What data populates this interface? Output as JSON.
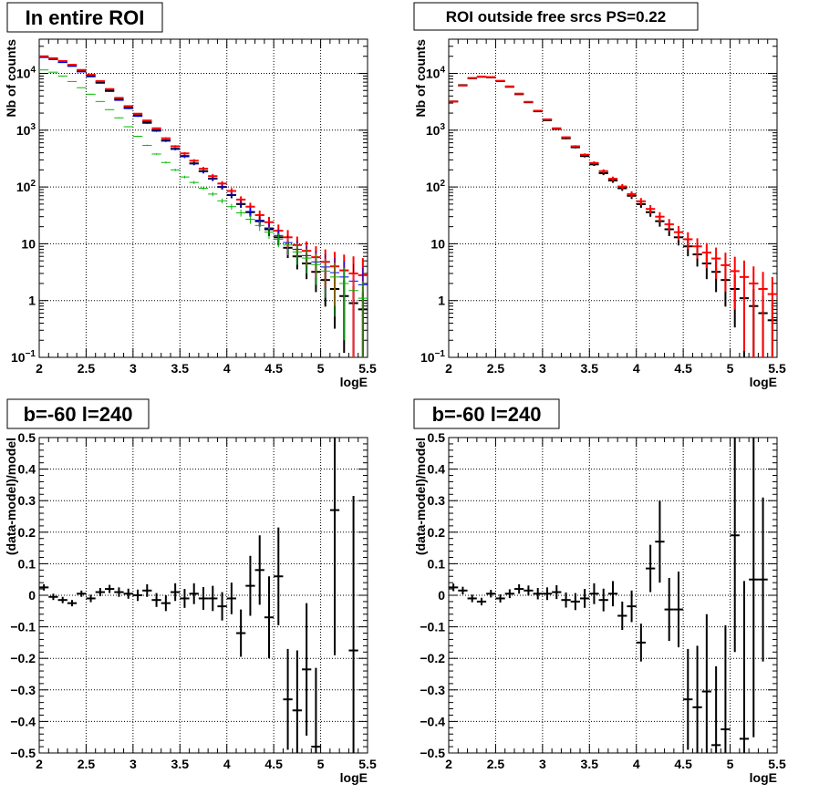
{
  "chart_data": [
    {
      "type": "scatter",
      "title": "In entire ROI",
      "xlabel": "logE",
      "ylabel": "Nb of counts",
      "xlim": [
        2,
        5.5
      ],
      "ylim": [
        0.1,
        40000
      ],
      "yscale": "log",
      "grid": true,
      "x_ticks": [
        "2",
        "2.5",
        "3",
        "3.5",
        "4",
        "4.5",
        "5",
        "5.5"
      ],
      "y_ticks": [
        {
          "value": 0.1,
          "base": "10",
          "exp": "−1"
        },
        {
          "value": 1,
          "label": "1"
        },
        {
          "value": 10,
          "label": "10"
        },
        {
          "value": 100,
          "base": "10",
          "exp": "2"
        },
        {
          "value": 1000,
          "base": "10",
          "exp": "3"
        },
        {
          "value": 10000,
          "base": "10",
          "exp": "4"
        }
      ],
      "x": [
        2.05,
        2.15,
        2.25,
        2.35,
        2.45,
        2.55,
        2.65,
        2.75,
        2.85,
        2.95,
        3.05,
        3.15,
        3.25,
        3.35,
        3.45,
        3.55,
        3.65,
        3.75,
        3.85,
        3.95,
        4.05,
        4.15,
        4.25,
        4.35,
        4.45,
        4.55,
        4.65,
        4.75,
        4.85,
        4.95,
        5.05,
        5.15,
        5.25,
        5.35,
        5.45
      ],
      "series": [
        {
          "color": "#000000",
          "values": [
            19500,
            18000,
            16000,
            13800,
            11000,
            9100,
            7000,
            5000,
            3500,
            2500,
            1820,
            1380,
            1000,
            660,
            470,
            350,
            260,
            190,
            140,
            100,
            72,
            50,
            36,
            25,
            18,
            13,
            8.5,
            6,
            4.5,
            3.2,
            2.3,
            1.6,
            1.2,
            0.9,
            0.7
          ],
          "rel_err": [
            0.008,
            0.008,
            0.008,
            0.009,
            0.01,
            0.011,
            0.012,
            0.014,
            0.017,
            0.02,
            0.023,
            0.027,
            0.032,
            0.039,
            0.046,
            0.053,
            0.062,
            0.073,
            0.085,
            0.1,
            0.12,
            0.14,
            0.17,
            0.2,
            0.24,
            0.28,
            0.34,
            0.41,
            0.47,
            0.56,
            0.66,
            0.8,
            0.9,
            1.0,
            1.0
          ]
        },
        {
          "color": "#ff0000",
          "values": [
            20000,
            18500,
            16500,
            14200,
            11500,
            9500,
            7300,
            5300,
            3700,
            2650,
            1950,
            1480,
            1080,
            720,
            520,
            390,
            290,
            210,
            155,
            115,
            85,
            60,
            45,
            32,
            24,
            17,
            13,
            9.5,
            7.5,
            5.8,
            4.8,
            4.0,
            3.4,
            3.0,
            2.8
          ],
          "rel_err": [
            0.008,
            0.008,
            0.008,
            0.009,
            0.01,
            0.011,
            0.012,
            0.014,
            0.017,
            0.02,
            0.023,
            0.027,
            0.032,
            0.039,
            0.046,
            0.053,
            0.062,
            0.073,
            0.085,
            0.1,
            0.12,
            0.14,
            0.17,
            0.2,
            0.24,
            0.28,
            0.34,
            0.41,
            0.47,
            0.56,
            0.66,
            0.8,
            0.9,
            1.0,
            1.0
          ]
        },
        {
          "color": "#0000ff",
          "values": [
            19000,
            17500,
            15500,
            13300,
            10600,
            8700,
            6700,
            4800,
            3350,
            2400,
            1750,
            1320,
            960,
            640,
            460,
            340,
            255,
            185,
            138,
            100,
            72,
            51,
            37,
            26,
            19,
            14,
            10.5,
            8,
            6.2,
            4.8,
            3.9,
            3.1,
            2.6,
            2.2,
            1.9
          ],
          "rel_err": [
            0.008,
            0.008,
            0.008,
            0.009,
            0.01,
            0.011,
            0.012,
            0.014,
            0.017,
            0.02,
            0.023,
            0.027,
            0.032,
            0.039,
            0.046,
            0.053,
            0.062,
            0.073,
            0.085,
            0.1,
            0.12,
            0.14,
            0.17,
            0.2,
            0.24,
            0.28,
            0.34,
            0.41,
            0.47,
            0.56,
            0.66,
            0.8,
            0.9,
            1.0,
            1.0
          ]
        },
        {
          "color": "#00bb00",
          "values": [
            11500,
            10500,
            9000,
            7200,
            5600,
            4300,
            3200,
            2300,
            1650,
            1150,
            780,
            540,
            380,
            270,
            200,
            150,
            120,
            95,
            75,
            57,
            45,
            35,
            27,
            21,
            16,
            12,
            9.5,
            7.2,
            5.6,
            4.3,
            3.3,
            2.6,
            2.0,
            1.5,
            1.1
          ],
          "rel_err": [
            0.008,
            0.008,
            0.008,
            0.009,
            0.01,
            0.011,
            0.012,
            0.014,
            0.017,
            0.02,
            0.023,
            0.027,
            0.032,
            0.039,
            0.046,
            0.053,
            0.062,
            0.073,
            0.085,
            0.1,
            0.12,
            0.14,
            0.17,
            0.2,
            0.24,
            0.28,
            0.34,
            0.41,
            0.47,
            0.56,
            0.66,
            0.8,
            0.9,
            1.0,
            1.0
          ]
        }
      ]
    },
    {
      "type": "scatter",
      "title": "ROI outside free srcs PS=0.22",
      "xlabel": "logE",
      "ylabel": "Nb of counts",
      "xlim": [
        2,
        5.5
      ],
      "ylim": [
        0.1,
        40000
      ],
      "yscale": "log",
      "grid": true,
      "x_ticks": [
        "2",
        "2.5",
        "3",
        "3.5",
        "4",
        "4.5",
        "5",
        "5.5"
      ],
      "y_ticks": [
        {
          "value": 0.1,
          "base": "10",
          "exp": "−1"
        },
        {
          "value": 1,
          "label": "1"
        },
        {
          "value": 10,
          "label": "10"
        },
        {
          "value": 100,
          "base": "10",
          "exp": "2"
        },
        {
          "value": 1000,
          "base": "10",
          "exp": "3"
        },
        {
          "value": 10000,
          "base": "10",
          "exp": "4"
        }
      ],
      "x": [
        2.05,
        2.15,
        2.25,
        2.35,
        2.45,
        2.55,
        2.65,
        2.75,
        2.85,
        2.95,
        3.05,
        3.15,
        3.25,
        3.35,
        3.45,
        3.55,
        3.65,
        3.75,
        3.85,
        3.95,
        4.05,
        4.15,
        4.25,
        4.35,
        4.45,
        4.55,
        4.65,
        4.75,
        4.85,
        4.95,
        5.05,
        5.15,
        5.25,
        5.35,
        5.45
      ],
      "series": [
        {
          "color": "#000000",
          "values": [
            3200,
            6200,
            8200,
            8700,
            8500,
            7300,
            5800,
            4300,
            3100,
            2150,
            1500,
            1050,
            720,
            500,
            350,
            250,
            175,
            130,
            95,
            70,
            50,
            36,
            25,
            18,
            13,
            9,
            6.5,
            4.5,
            3.2,
            2.3,
            1.6,
            1.1,
            0.8,
            0.6,
            0.45
          ],
          "rel_err": [
            0.02,
            0.013,
            0.011,
            0.011,
            0.011,
            0.012,
            0.013,
            0.015,
            0.018,
            0.022,
            0.026,
            0.031,
            0.037,
            0.045,
            0.053,
            0.063,
            0.076,
            0.088,
            0.1,
            0.12,
            0.14,
            0.17,
            0.2,
            0.24,
            0.28,
            0.33,
            0.39,
            0.47,
            0.56,
            0.66,
            0.79,
            0.95,
            1.0,
            1.0,
            1.0
          ]
        },
        {
          "color": "#ff0000",
          "values": [
            3200,
            6100,
            8300,
            8800,
            8600,
            7400,
            5900,
            4400,
            3150,
            2200,
            1550,
            1080,
            750,
            520,
            370,
            265,
            190,
            140,
            102,
            75,
            56,
            41,
            30,
            22,
            16,
            12,
            9,
            7,
            5.5,
            4.2,
            3.3,
            2.6,
            2.0,
            1.6,
            1.3
          ],
          "rel_err": [
            0.02,
            0.013,
            0.011,
            0.011,
            0.011,
            0.012,
            0.013,
            0.015,
            0.018,
            0.022,
            0.026,
            0.031,
            0.037,
            0.045,
            0.053,
            0.063,
            0.076,
            0.088,
            0.1,
            0.12,
            0.14,
            0.17,
            0.2,
            0.24,
            0.28,
            0.33,
            0.39,
            0.47,
            0.56,
            0.66,
            0.79,
            0.95,
            1.0,
            1.0,
            1.0
          ]
        }
      ]
    },
    {
      "type": "scatter",
      "title": "b=-60 l=240",
      "xlabel": "logE",
      "ylabel": "(data-model)/model",
      "xlim": [
        2,
        5.5
      ],
      "ylim": [
        -0.5,
        0.5
      ],
      "grid": true,
      "x_ticks": [
        "2",
        "2.5",
        "3",
        "3.5",
        "4",
        "4.5",
        "5",
        "5.5"
      ],
      "y_ticks": [
        {
          "value": -0.5,
          "label": "−0.5"
        },
        {
          "value": -0.4,
          "label": "−0.4"
        },
        {
          "value": -0.3,
          "label": "−0.3"
        },
        {
          "value": -0.2,
          "label": "−0.2"
        },
        {
          "value": -0.1,
          "label": "−0.1"
        },
        {
          "value": 0,
          "label": "0"
        },
        {
          "value": 0.1,
          "label": "0.1"
        },
        {
          "value": 0.2,
          "label": "0.2"
        },
        {
          "value": 0.3,
          "label": "0.3"
        },
        {
          "value": 0.4,
          "label": "0.4"
        },
        {
          "value": 0.5,
          "label": "0.5"
        }
      ],
      "x": [
        2.05,
        2.15,
        2.25,
        2.35,
        2.45,
        2.55,
        2.65,
        2.75,
        2.85,
        2.95,
        3.05,
        3.15,
        3.25,
        3.35,
        3.45,
        3.55,
        3.65,
        3.75,
        3.85,
        3.95,
        4.05,
        4.15,
        4.25,
        4.35,
        4.45,
        4.55,
        4.65,
        4.75,
        4.85,
        4.95,
        5.15,
        5.35
      ],
      "series": [
        {
          "color": "#000000",
          "values": [
            0.025,
            -0.005,
            -0.015,
            -0.025,
            0.005,
            -0.01,
            0.01,
            0.02,
            0.01,
            0.005,
            0.0,
            0.015,
            -0.015,
            -0.025,
            0.01,
            -0.01,
            0.005,
            -0.01,
            -0.01,
            -0.035,
            -0.01,
            -0.12,
            0.03,
            0.08,
            -0.07,
            0.06,
            -0.33,
            -0.365,
            -0.235,
            -0.48,
            0.27,
            -0.175
          ],
          "errors": [
            0.01,
            0.01,
            0.01,
            0.01,
            0.01,
            0.012,
            0.013,
            0.013,
            0.015,
            0.016,
            0.018,
            0.02,
            0.022,
            0.025,
            0.028,
            0.03,
            0.033,
            0.036,
            0.04,
            0.045,
            0.05,
            0.075,
            0.095,
            0.11,
            0.13,
            0.155,
            0.16,
            0.19,
            0.21,
            0.25,
            0.46,
            0.49
          ]
        }
      ]
    },
    {
      "type": "scatter",
      "title": "b=-60 l=240",
      "xlabel": "logE",
      "ylabel": "(data-model)/model",
      "xlim": [
        2,
        5.5
      ],
      "ylim": [
        -0.5,
        0.5
      ],
      "grid": true,
      "x_ticks": [
        "2",
        "2.5",
        "3",
        "3.5",
        "4",
        "4.5",
        "5",
        "5.5"
      ],
      "y_ticks": [
        {
          "value": -0.5,
          "label": "−0.5"
        },
        {
          "value": -0.4,
          "label": "−0.4"
        },
        {
          "value": -0.3,
          "label": "−0.3"
        },
        {
          "value": -0.2,
          "label": "−0.2"
        },
        {
          "value": -0.1,
          "label": "−0.1"
        },
        {
          "value": 0,
          "label": "0"
        },
        {
          "value": 0.1,
          "label": "0.1"
        },
        {
          "value": 0.2,
          "label": "0.2"
        },
        {
          "value": 0.3,
          "label": "0.3"
        },
        {
          "value": 0.4,
          "label": "0.4"
        },
        {
          "value": 0.5,
          "label": "0.5"
        }
      ],
      "x": [
        2.05,
        2.15,
        2.25,
        2.35,
        2.45,
        2.55,
        2.65,
        2.75,
        2.85,
        2.95,
        3.05,
        3.15,
        3.25,
        3.35,
        3.45,
        3.55,
        3.65,
        3.75,
        3.85,
        3.95,
        4.05,
        4.15,
        4.25,
        4.35,
        4.45,
        4.55,
        4.65,
        4.75,
        4.85,
        4.95,
        5.05,
        5.15,
        5.25,
        5.35
      ],
      "series": [
        {
          "color": "#000000",
          "values": [
            0.025,
            0.015,
            -0.01,
            -0.02,
            0.005,
            -0.01,
            0.005,
            0.02,
            0.015,
            0.005,
            0.005,
            0.01,
            -0.015,
            -0.02,
            -0.01,
            0.005,
            -0.015,
            0.005,
            -0.065,
            -0.035,
            -0.15,
            0.085,
            0.17,
            -0.045,
            -0.045,
            -0.33,
            -0.355,
            -0.305,
            -0.475,
            -0.425,
            0.19,
            -0.455,
            0.05,
            0.05
          ],
          "errors": [
            0.012,
            0.012,
            0.012,
            0.012,
            0.012,
            0.013,
            0.014,
            0.015,
            0.016,
            0.018,
            0.02,
            0.022,
            0.024,
            0.027,
            0.03,
            0.033,
            0.036,
            0.04,
            0.045,
            0.05,
            0.06,
            0.075,
            0.13,
            0.1,
            0.12,
            0.16,
            0.195,
            0.245,
            0.25,
            0.33,
            0.37,
            0.5,
            0.5,
            0.26
          ]
        }
      ]
    }
  ]
}
